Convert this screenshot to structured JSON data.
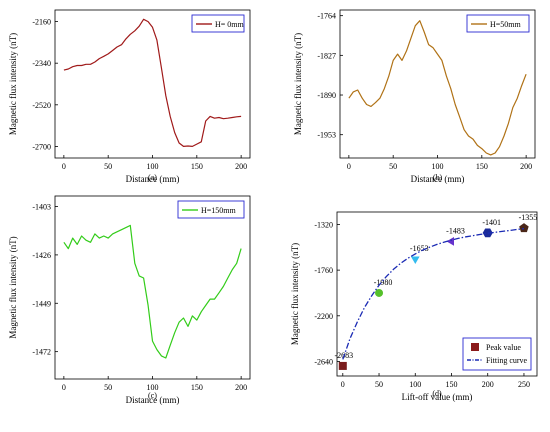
{
  "chart_data": [
    {
      "panel": "a",
      "type": "line",
      "caption": "(a)",
      "xlabel": "Distance (mm)",
      "ylabel": "Magnetic flux intensity (nT)",
      "xlim": [
        -10,
        210
      ],
      "ylim": [
        -2750,
        -2110
      ],
      "xticks": [
        0,
        50,
        100,
        150,
        200
      ],
      "yticks": [
        -2160,
        -2340,
        -2520,
        -2700
      ],
      "legend_position": "top-right",
      "grid": false,
      "series": [
        {
          "name": "H= 0mm",
          "color": "#a01a1a",
          "x": [
            0,
            5,
            10,
            15,
            20,
            25,
            30,
            35,
            40,
            45,
            50,
            55,
            60,
            65,
            70,
            75,
            80,
            85,
            90,
            95,
            100,
            105,
            110,
            115,
            120,
            125,
            130,
            135,
            140,
            145,
            150,
            155,
            160,
            165,
            170,
            175,
            180,
            185,
            190,
            195,
            200
          ],
          "values": [
            -2370,
            -2365,
            -2355,
            -2350,
            -2350,
            -2345,
            -2345,
            -2335,
            -2320,
            -2310,
            -2300,
            -2285,
            -2270,
            -2260,
            -2235,
            -2215,
            -2200,
            -2180,
            -2150,
            -2160,
            -2185,
            -2240,
            -2360,
            -2480,
            -2570,
            -2640,
            -2685,
            -2700,
            -2698,
            -2700,
            -2690,
            -2680,
            -2590,
            -2570,
            -2578,
            -2575,
            -2580,
            -2578,
            -2575,
            -2572,
            -2570
          ]
        }
      ]
    },
    {
      "panel": "b",
      "type": "line",
      "caption": "(b)",
      "xlabel": "Distance (mm)",
      "ylabel": "Magnetic flux intensity (nT)",
      "xlim": [
        -10,
        210
      ],
      "ylim": [
        -1990,
        -1755
      ],
      "xticks": [
        0,
        50,
        100,
        150,
        200
      ],
      "yticks": [
        -1764,
        -1827,
        -1890,
        -1953
      ],
      "legend_position": "top-right",
      "grid": false,
      "series": [
        {
          "name": "H=50mm",
          "color": "#b07216",
          "x": [
            0,
            5,
            10,
            15,
            20,
            25,
            30,
            35,
            40,
            45,
            50,
            55,
            60,
            65,
            70,
            75,
            80,
            85,
            90,
            95,
            100,
            105,
            110,
            115,
            120,
            125,
            130,
            135,
            140,
            145,
            150,
            155,
            160,
            165,
            170,
            175,
            180,
            185,
            190,
            195,
            200
          ],
          "values": [
            -1895,
            -1885,
            -1882,
            -1895,
            -1905,
            -1908,
            -1902,
            -1895,
            -1880,
            -1860,
            -1835,
            -1825,
            -1835,
            -1820,
            -1800,
            -1780,
            -1772,
            -1790,
            -1810,
            -1815,
            -1825,
            -1835,
            -1860,
            -1880,
            -1905,
            -1925,
            -1945,
            -1955,
            -1960,
            -1970,
            -1975,
            -1982,
            -1985,
            -1982,
            -1972,
            -1955,
            -1935,
            -1910,
            -1895,
            -1875,
            -1857
          ]
        }
      ]
    },
    {
      "panel": "c",
      "type": "line",
      "caption": "(c)",
      "xlabel": "Distance (mm)",
      "ylabel": "Magnetic flux intensity (nT)",
      "xlim": [
        -10,
        210
      ],
      "ylim": [
        -1485,
        -1398
      ],
      "xticks": [
        0,
        50,
        100,
        150,
        200
      ],
      "yticks": [
        -1403,
        -1426,
        -1449,
        -1472
      ],
      "legend_position": "top-right",
      "grid": false,
      "series": [
        {
          "name": "H=150mm",
          "color": "#33cc1a",
          "x": [
            0,
            5,
            10,
            15,
            20,
            25,
            30,
            35,
            40,
            45,
            50,
            55,
            60,
            65,
            70,
            75,
            80,
            85,
            90,
            95,
            100,
            105,
            110,
            115,
            120,
            125,
            130,
            135,
            140,
            145,
            150,
            155,
            160,
            165,
            170,
            175,
            180,
            185,
            190,
            195,
            200
          ],
          "values": [
            -1420,
            -1423,
            -1418,
            -1421,
            -1417,
            -1419,
            -1420,
            -1416,
            -1418,
            -1417,
            -1418,
            -1416,
            -1415,
            -1414,
            -1413,
            -1412,
            -1430,
            -1436,
            -1437,
            -1450,
            -1467,
            -1471,
            -1474,
            -1475,
            -1469,
            -1463,
            -1458,
            -1456,
            -1460,
            -1455,
            -1457,
            -1453,
            -1450,
            -1447,
            -1447,
            -1444,
            -1441,
            -1437,
            -1433,
            -1430,
            -1423
          ]
        }
      ]
    },
    {
      "panel": "d",
      "type": "scatter",
      "caption": "(d)",
      "xlabel": "Lift-off value (mm)",
      "ylabel": "Magnetic flux intensity (nT)",
      "xlim": [
        -8,
        268
      ],
      "ylim": [
        -2780,
        -1200
      ],
      "xticks": [
        0,
        50,
        100,
        150,
        200,
        250
      ],
      "yticks": [
        -1320,
        -1760,
        -2200,
        -2640
      ],
      "legend_position": "bottom-right",
      "grid": false,
      "series": [
        {
          "name": "Peak value",
          "color": "#8b1a1a",
          "x": [
            0,
            50,
            100,
            150,
            200,
            250
          ],
          "values": [
            -2683,
            -1980,
            -1653,
            -1483,
            -1401,
            -1355
          ],
          "marker_colors": [
            "#7a1c1c",
            "#55c02a",
            "#33bbee",
            "#6633cc",
            "#1a2a99",
            "#4a2618"
          ],
          "markers": [
            "square",
            "circle",
            "triangle-down",
            "triangle-left",
            "hexagon",
            "pentagon"
          ]
        },
        {
          "name": "Fitting curve",
          "color": "#1a2ab4",
          "style": "dash-dot",
          "x": [
            0,
            10,
            20,
            30,
            40,
            50,
            60,
            70,
            80,
            90,
            100,
            110,
            120,
            130,
            140,
            150,
            160,
            170,
            180,
            190,
            200,
            210,
            220,
            230,
            240,
            250
          ],
          "values": [
            -2620,
            -2420,
            -2260,
            -2120,
            -2005,
            -1905,
            -1822,
            -1752,
            -1693,
            -1645,
            -1604,
            -1568,
            -1538,
            -1512,
            -1490,
            -1470,
            -1453,
            -1439,
            -1427,
            -1416,
            -1405,
            -1396,
            -1387,
            -1378,
            -1369,
            -1360
          ]
        }
      ],
      "annotations": [
        "-2683",
        "-1980",
        "-1653",
        "-1483",
        "-1401",
        "-1355"
      ]
    }
  ]
}
